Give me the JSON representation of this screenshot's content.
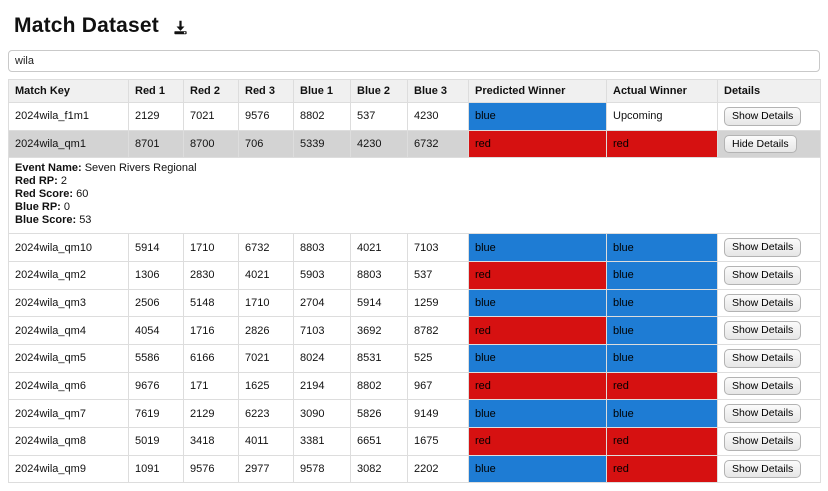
{
  "page": {
    "title": "Match Dataset"
  },
  "icons": {
    "title_action": "download-icon"
  },
  "search": {
    "value": "wila",
    "placeholder": ""
  },
  "colors": {
    "blue": "#1e7cd4",
    "red": "#d61111",
    "selected_row": "#d3d3d3",
    "header_bg": "#f0f0f0",
    "border": "#dddddd"
  },
  "buttons": {
    "show": "Show Details",
    "hide": "Hide Details"
  },
  "table": {
    "columns": [
      "Match Key",
      "Red 1",
      "Red 2",
      "Red 3",
      "Blue 1",
      "Blue 2",
      "Blue 3",
      "Predicted Winner",
      "Actual Winner",
      "Details"
    ],
    "rows": [
      {
        "key": "2024wila_f1m1",
        "red1": "2129",
        "red2": "7021",
        "red3": "9576",
        "blue1": "8802",
        "blue2": "537",
        "blue3": "4230",
        "predicted": {
          "label": "blue",
          "color": "blue"
        },
        "actual": {
          "label": "Upcoming",
          "color": null
        },
        "button": "show",
        "selected": false
      },
      {
        "key": "2024wila_qm1",
        "red1": "8701",
        "red2": "8700",
        "red3": "706",
        "blue1": "5339",
        "blue2": "4230",
        "blue3": "6732",
        "predicted": {
          "label": "red",
          "color": "red"
        },
        "actual": {
          "label": "red",
          "color": "red"
        },
        "button": "hide",
        "selected": true,
        "details": [
          {
            "label": "Event Name",
            "value": "Seven Rivers Regional"
          },
          {
            "label": "Red RP",
            "value": "2"
          },
          {
            "label": "Red Score",
            "value": "60"
          },
          {
            "label": "Blue RP",
            "value": "0"
          },
          {
            "label": "Blue Score",
            "value": "53"
          }
        ]
      },
      {
        "key": "2024wila_qm10",
        "red1": "5914",
        "red2": "1710",
        "red3": "6732",
        "blue1": "8803",
        "blue2": "4021",
        "blue3": "7103",
        "predicted": {
          "label": "blue",
          "color": "blue"
        },
        "actual": {
          "label": "blue",
          "color": "blue"
        },
        "button": "show",
        "selected": false
      },
      {
        "key": "2024wila_qm2",
        "red1": "1306",
        "red2": "2830",
        "red3": "4021",
        "blue1": "5903",
        "blue2": "8803",
        "blue3": "537",
        "predicted": {
          "label": "red",
          "color": "red"
        },
        "actual": {
          "label": "blue",
          "color": "blue"
        },
        "button": "show",
        "selected": false
      },
      {
        "key": "2024wila_qm3",
        "red1": "2506",
        "red2": "5148",
        "red3": "1710",
        "blue1": "2704",
        "blue2": "5914",
        "blue3": "1259",
        "predicted": {
          "label": "blue",
          "color": "blue"
        },
        "actual": {
          "label": "blue",
          "color": "blue"
        },
        "button": "show",
        "selected": false
      },
      {
        "key": "2024wila_qm4",
        "red1": "4054",
        "red2": "1716",
        "red3": "2826",
        "blue1": "7103",
        "blue2": "3692",
        "blue3": "8782",
        "predicted": {
          "label": "red",
          "color": "red"
        },
        "actual": {
          "label": "blue",
          "color": "blue"
        },
        "button": "show",
        "selected": false
      },
      {
        "key": "2024wila_qm5",
        "red1": "5586",
        "red2": "6166",
        "red3": "7021",
        "blue1": "8024",
        "blue2": "8531",
        "blue3": "525",
        "predicted": {
          "label": "blue",
          "color": "blue"
        },
        "actual": {
          "label": "blue",
          "color": "blue"
        },
        "button": "show",
        "selected": false
      },
      {
        "key": "2024wila_qm6",
        "red1": "9676",
        "red2": "171",
        "red3": "1625",
        "blue1": "2194",
        "blue2": "8802",
        "blue3": "967",
        "predicted": {
          "label": "red",
          "color": "red"
        },
        "actual": {
          "label": "red",
          "color": "red"
        },
        "button": "show",
        "selected": false
      },
      {
        "key": "2024wila_qm7",
        "red1": "7619",
        "red2": "2129",
        "red3": "6223",
        "blue1": "3090",
        "blue2": "5826",
        "blue3": "9149",
        "predicted": {
          "label": "blue",
          "color": "blue"
        },
        "actual": {
          "label": "blue",
          "color": "blue"
        },
        "button": "show",
        "selected": false
      },
      {
        "key": "2024wila_qm8",
        "red1": "5019",
        "red2": "3418",
        "red3": "4011",
        "blue1": "3381",
        "blue2": "6651",
        "blue3": "1675",
        "predicted": {
          "label": "red",
          "color": "red"
        },
        "actual": {
          "label": "red",
          "color": "red"
        },
        "button": "show",
        "selected": false
      },
      {
        "key": "2024wila_qm9",
        "red1": "1091",
        "red2": "9576",
        "red3": "2977",
        "blue1": "9578",
        "blue2": "3082",
        "blue3": "2202",
        "predicted": {
          "label": "blue",
          "color": "blue"
        },
        "actual": {
          "label": "red",
          "color": "red"
        },
        "button": "show",
        "selected": false
      }
    ]
  }
}
